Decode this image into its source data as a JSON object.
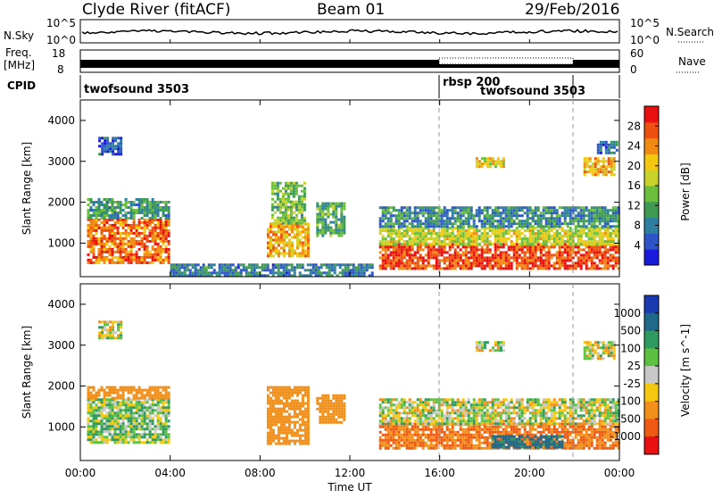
{
  "header": {
    "station": "Clyde River (fitACF)",
    "beam": "Beam 01",
    "date": "29/Feb/2016"
  },
  "top_panels": {
    "nsky_label": "N.Sky",
    "nsky_ticks": [
      "10^5",
      "10^0"
    ],
    "nsearch_label": "N.Search",
    "nsearch_ticks": [
      "10^5",
      "10^0"
    ],
    "freq_label": [
      "Freq.",
      "[MHz]"
    ],
    "freq_ticks": [
      "18",
      "8"
    ],
    "nave_label": "Nave",
    "nave_ticks": [
      "60",
      "0"
    ],
    "cpid_label": "CPID",
    "cpid_segments": [
      {
        "label": "twofsound 3503",
        "start_h": 0,
        "end_h": 16
      },
      {
        "label": "rbsp 200",
        "start_h": 16,
        "end_h": 22
      },
      {
        "label": "twofsound 3503",
        "start_h": 22,
        "end_h": 24
      }
    ]
  },
  "chart_data": [
    {
      "type": "heatmap",
      "panel": "power",
      "ylabel": "Slant Range [km]",
      "ylim": [
        180,
        4500
      ],
      "yticks": [
        1000,
        2000,
        3000,
        4000
      ],
      "colorbar_label": "Power [dB]",
      "colorbar_ticks": [
        4,
        8,
        12,
        16,
        20,
        24,
        28
      ],
      "colorbar_range": [
        0,
        32
      ],
      "colors": [
        "#1a1adc",
        "#2d55c8",
        "#2e7fa0",
        "#3f9a52",
        "#6cbf3c",
        "#c8d22a",
        "#f5c810",
        "#f08a10",
        "#ee5010",
        "#e81010"
      ],
      "regions": [
        {
          "x": [
            0.3,
            3.9
          ],
          "y": [
            500,
            1600
          ],
          "v": 26
        },
        {
          "x": [
            0.3,
            3.9
          ],
          "y": [
            1600,
            2100
          ],
          "v": 11
        },
        {
          "x": [
            0.8,
            1.8
          ],
          "y": [
            3200,
            3600
          ],
          "v": 5
        },
        {
          "x": [
            8.3,
            10.2
          ],
          "y": [
            700,
            1500
          ],
          "v": 22
        },
        {
          "x": [
            8.5,
            10.0
          ],
          "y": [
            1500,
            2500
          ],
          "v": 14
        },
        {
          "x": [
            10.5,
            11.8
          ],
          "y": [
            1200,
            2000
          ],
          "v": 12
        },
        {
          "x": [
            13.3,
            24
          ],
          "y": [
            400,
            1000
          ],
          "v": 28
        },
        {
          "x": [
            13.3,
            24
          ],
          "y": [
            1000,
            1400
          ],
          "v": 18
        },
        {
          "x": [
            13.3,
            24
          ],
          "y": [
            1400,
            1900
          ],
          "v": 9
        },
        {
          "x": [
            17.6,
            18.8
          ],
          "y": [
            2850,
            3100
          ],
          "v": 20
        },
        {
          "x": [
            22.4,
            23.8
          ],
          "y": [
            2700,
            3100
          ],
          "v": 22
        },
        {
          "x": [
            23.0,
            23.9
          ],
          "y": [
            3200,
            3500
          ],
          "v": 6
        },
        {
          "x": [
            4.0,
            13.0
          ],
          "y": [
            200,
            500
          ],
          "v": 8
        }
      ]
    },
    {
      "type": "heatmap",
      "panel": "velocity",
      "ylabel": "Slant Range [km]",
      "ylim": [
        180,
        4500
      ],
      "yticks": [
        1000,
        2000,
        3000,
        4000
      ],
      "colorbar_label": "Velocity [m s^-1]",
      "colorbar_ticks": [
        1000,
        500,
        100,
        25,
        -25,
        -100,
        -500,
        -1000
      ],
      "colors": [
        "#1a3ab0",
        "#1f6a8a",
        "#2f9a60",
        "#5cc040",
        "#c8c8c8",
        "#f5c810",
        "#f0901a",
        "#ee5a12",
        "#e81010"
      ],
      "regions": [
        {
          "x": [
            0.3,
            3.9
          ],
          "y": [
            600,
            1700
          ],
          "v": 50
        },
        {
          "x": [
            0.3,
            3.9
          ],
          "y": [
            1700,
            2000
          ],
          "v": -300
        },
        {
          "x": [
            8.3,
            10.2
          ],
          "y": [
            600,
            2000
          ],
          "v": -300
        },
        {
          "x": [
            10.5,
            11.8
          ],
          "y": [
            1100,
            1800
          ],
          "v": -300
        },
        {
          "x": [
            13.3,
            24
          ],
          "y": [
            500,
            1100
          ],
          "v": -500
        },
        {
          "x": [
            13.3,
            24
          ],
          "y": [
            1100,
            1700
          ],
          "v": 0
        },
        {
          "x": [
            18.3,
            21.5
          ],
          "y": [
            500,
            800
          ],
          "v": 600
        },
        {
          "x": [
            0.8,
            1.8
          ],
          "y": [
            3200,
            3600
          ],
          "v": 0
        },
        {
          "x": [
            17.6,
            18.8
          ],
          "y": [
            2850,
            3100
          ],
          "v": 0
        },
        {
          "x": [
            22.4,
            23.8
          ],
          "y": [
            2700,
            3100
          ],
          "v": 0
        }
      ]
    }
  ],
  "x_axis": {
    "range_h": [
      0,
      24
    ],
    "ticks": [
      "00:00",
      "04:00",
      "08:00",
      "12:00",
      "16:00",
      "20:00",
      "00:00"
    ],
    "label": "Time UT"
  }
}
